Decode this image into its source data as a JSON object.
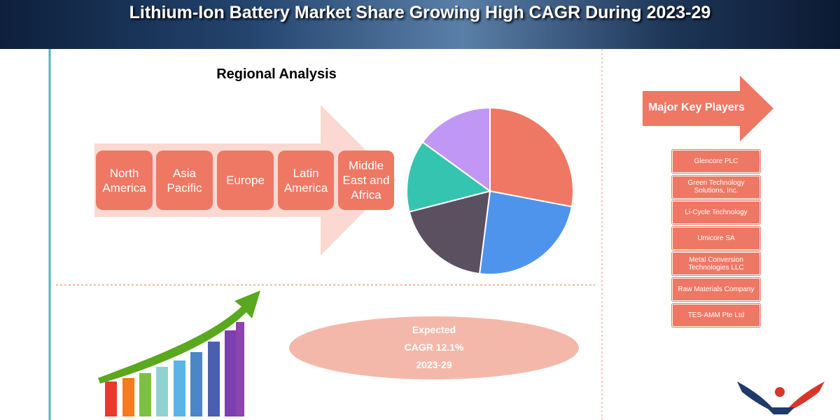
{
  "header": {
    "title": "Lithium-Ion Battery Market Share Growing High CAGR During 2023-29"
  },
  "regional": {
    "title": "Regional Analysis",
    "regions": [
      "North America",
      "Asia Pacific",
      "Europe",
      "Latin America",
      "Middle East and Africa"
    ]
  },
  "chart_data": {
    "type": "pie",
    "values": [
      28,
      24,
      19,
      14,
      15
    ],
    "colors": [
      "#ee7864",
      "#4f94ec",
      "#5a5060",
      "#35c4b0",
      "#c197f5"
    ]
  },
  "players": {
    "title": "Major Key Players",
    "items": [
      "Glencore PLC",
      "Green Technology Solutions, Inc.",
      "Li-Cycle Technology",
      "Umicore SA",
      "Metal Conversion Technologies LLC",
      "Raw Materials Company",
      "TES-AMM Pte Ltd"
    ]
  },
  "cagr": {
    "lines": [
      "Expected",
      "CAGR 12.1%",
      "2023-29"
    ]
  }
}
